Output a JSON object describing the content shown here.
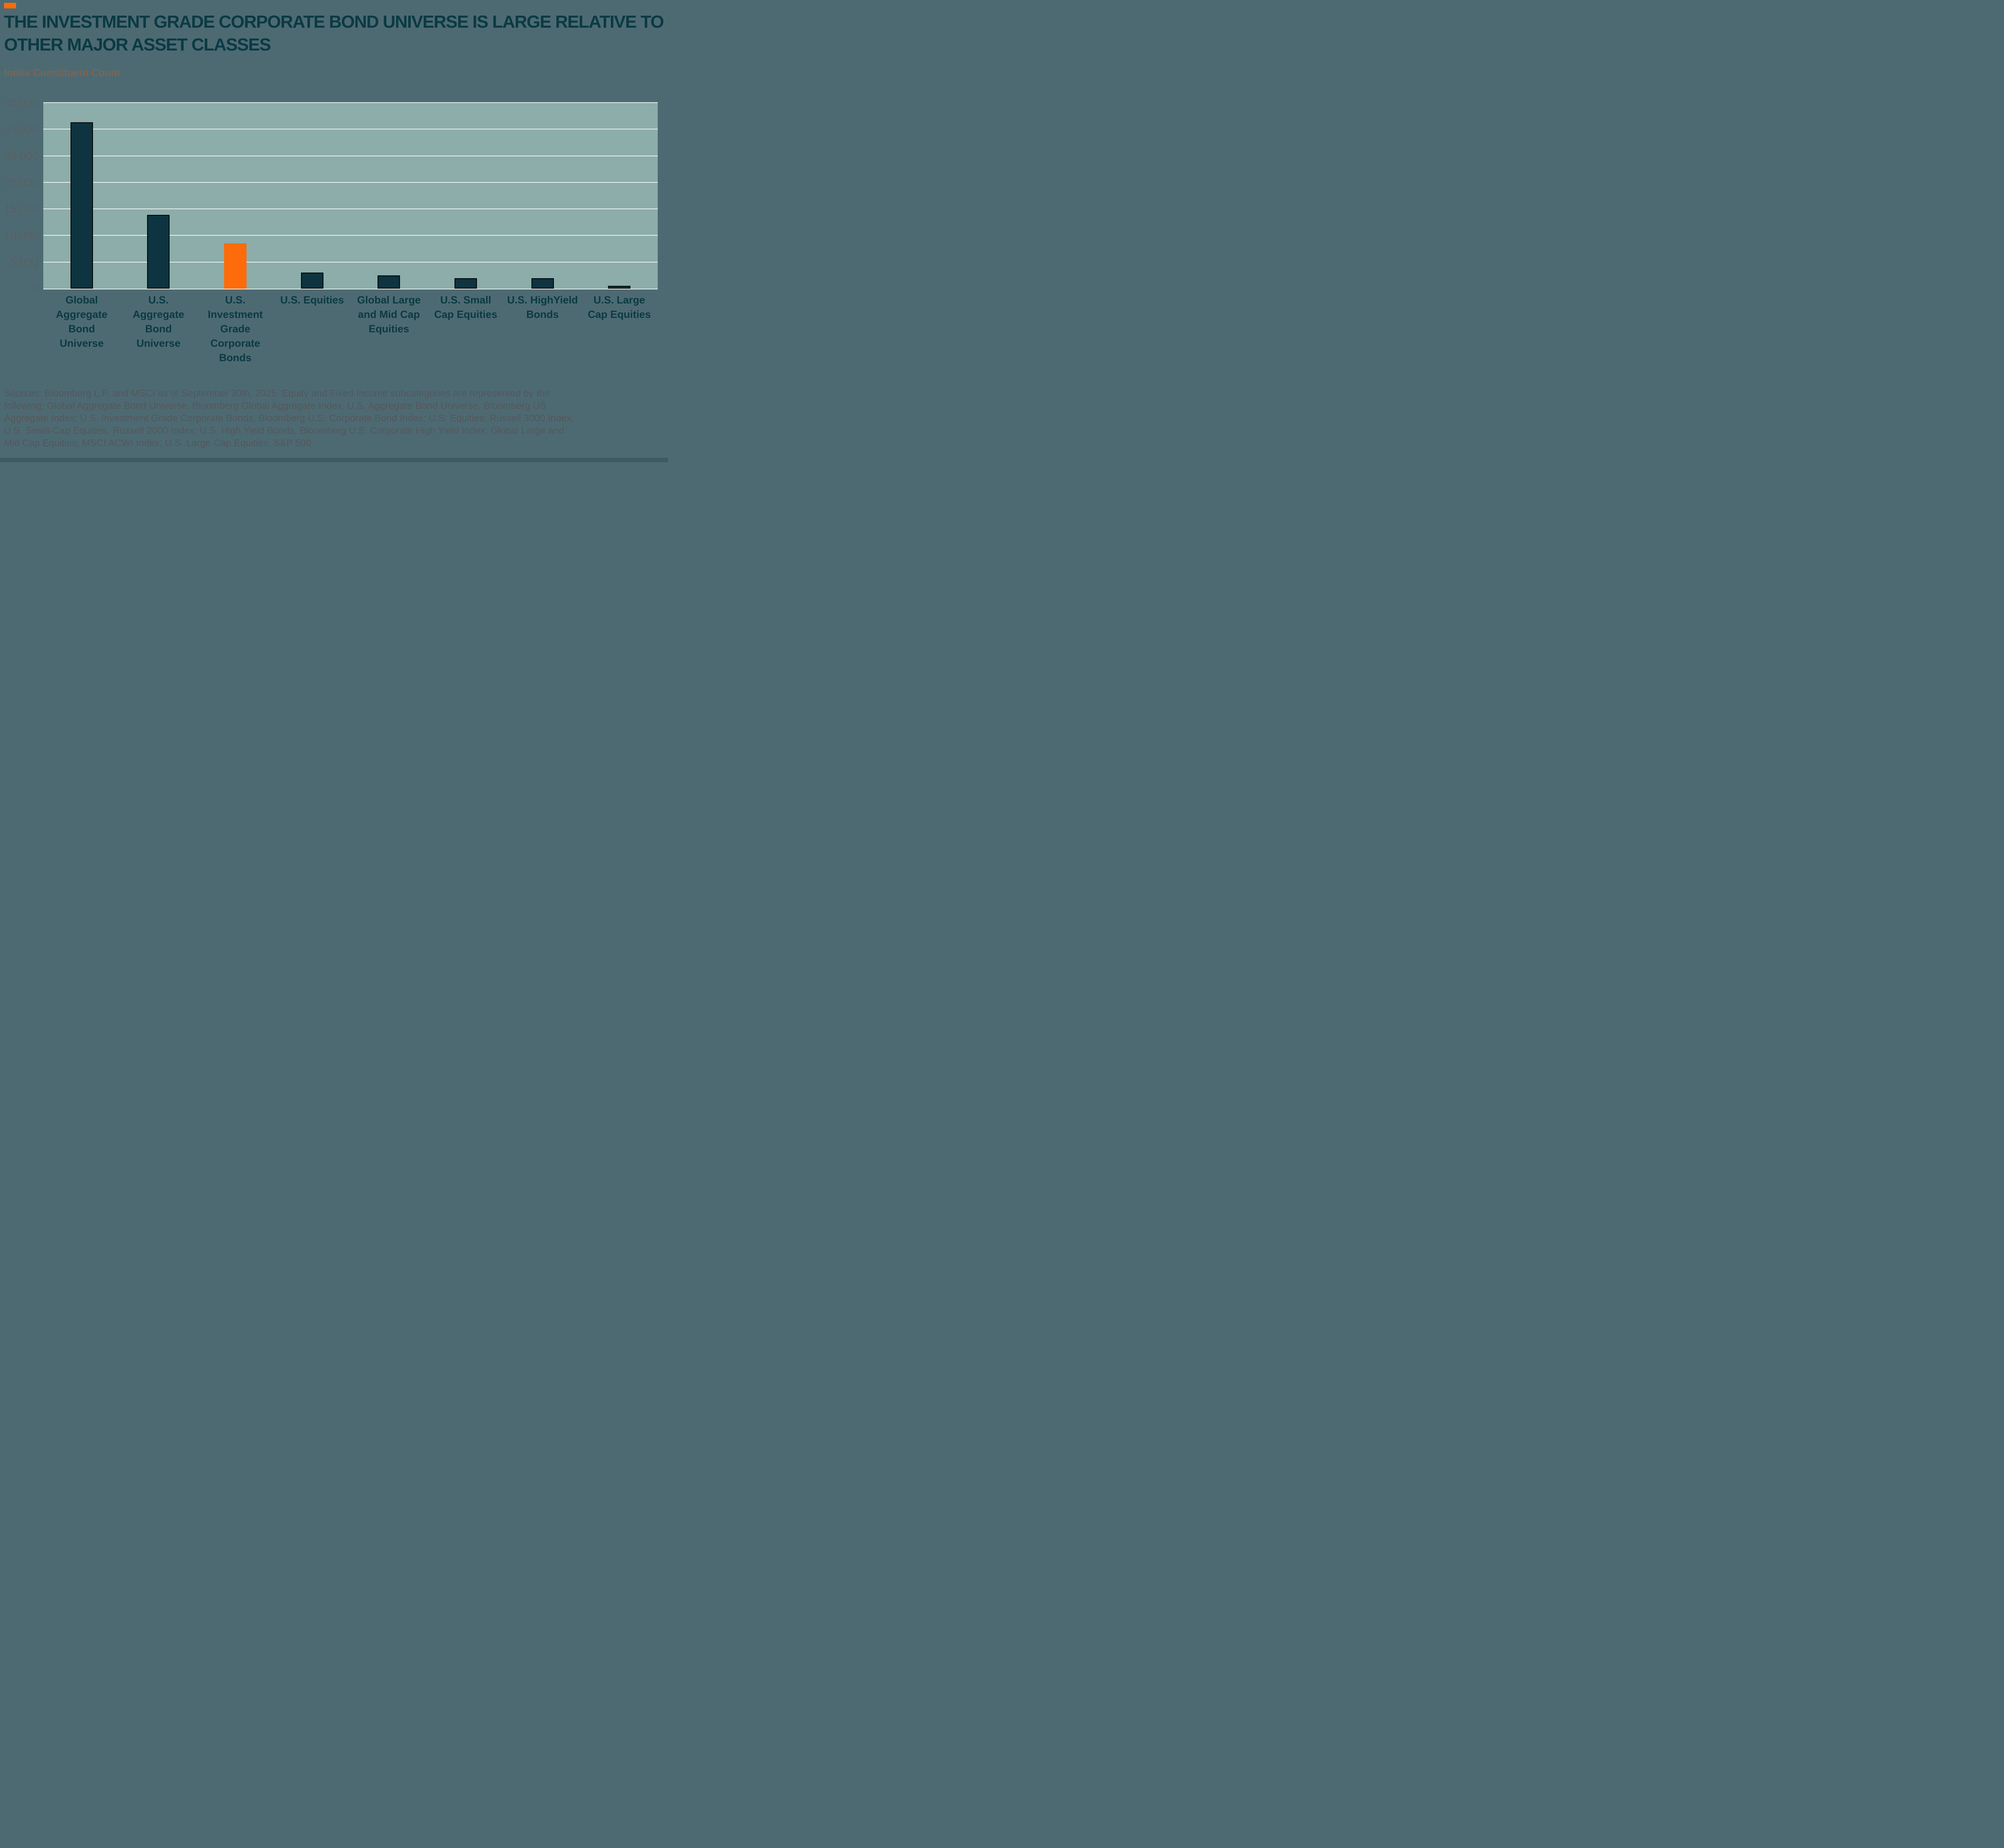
{
  "header": {
    "title_line1": "THE INVESTMENT GRADE CORPORATE BOND UNIVERSE IS LARGE RELATIVE TO",
    "title_line2": "OTHER MAJOR ASSET CLASSES",
    "subtitle": "Index Constituent Count"
  },
  "chart_data": {
    "type": "bar",
    "title": "Index Constituent Count",
    "categories": [
      "Global Aggregate Bond Universe",
      "U.S. Aggregate Bond Universe",
      "U.S. Investment Grade Corporate Bonds",
      "U.S. Equities",
      "Global Large and Mid Cap Equities",
      "U.S. Small Cap Equities",
      "U.S. HighYield Bonds",
      "U.S. Large Cap Equities"
    ],
    "values": [
      31300,
      13900,
      8500,
      3000,
      2500,
      2000,
      2000,
      500
    ],
    "highlight_index": 2,
    "xlabel": "",
    "ylabel": "Index Constituent Count",
    "ylim": [
      0,
      35000
    ],
    "ytick_step": 5000,
    "yticks": [
      "35,000",
      "30,000",
      "25,000",
      "20,000",
      "15,000",
      "10,000",
      "5,000",
      "0"
    ],
    "grid": true,
    "legend": false,
    "colors": {
      "bar_default": "#0d3440",
      "bar_highlight": "#fd6b0a",
      "plot_background": "#8cada9",
      "gridline": "#e6eeec",
      "page_background": "#4d6a73",
      "title_text": "#0b3a43",
      "accent": "#fd6b0a"
    }
  },
  "footer": {
    "lines": [
      "Sources: Bloomberg L.P. and MSCI as of September 30th, 2025. Equity and Fixed Income subcategories are represented by the",
      "following: Global Aggregate Bond Universe, Bloomberg Global Aggregate Index; U.S. Aggregate Bond Universe, Bloomberg US",
      "Aggregate Index; U.S. Investment Grade Corporate Bonds, Bloomberg U.S. Corporate Bond Index; U.S. Equities; Russell 3000 Index;",
      "U.S. Small-Cap Equities, Russell 2000 Index; U.S. High Yield Bonds, Bloomberg U.S. Corporate High Yield Index; Global Large and",
      "Mid Cap Equities; MSCI ACWI Index; U.S. Large Cap Equities, S&P 500."
    ]
  }
}
